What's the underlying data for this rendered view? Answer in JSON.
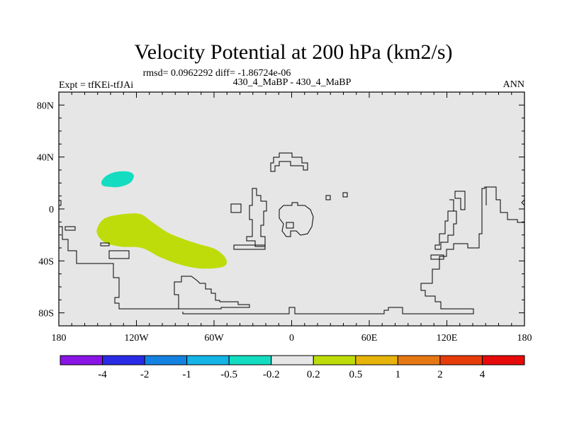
{
  "chart_data": {
    "type": "heatmap",
    "title": "Velocity Potential at 200 hPa (km2/s)",
    "stats_text": "rmsd= 0.0962292 diff= -1.86724e-06",
    "left_label": "Expt = tfKEi-tfJAi",
    "center_label": "430_4_MaBP - 430_4_MaBP",
    "right_label": "ANN",
    "x_range": [
      -180,
      180
    ],
    "y_range": [
      -90,
      90
    ],
    "x_ticks": [
      {
        "value": -180,
        "label": "180"
      },
      {
        "value": -120,
        "label": "120W"
      },
      {
        "value": -60,
        "label": "60W"
      },
      {
        "value": 0,
        "label": "0"
      },
      {
        "value": 60,
        "label": "60E"
      },
      {
        "value": 120,
        "label": "120E"
      },
      {
        "value": 180,
        "label": "180"
      }
    ],
    "y_ticks": [
      {
        "value": 80,
        "label": "80N"
      },
      {
        "value": 40,
        "label": "40N"
      },
      {
        "value": 0,
        "label": "0"
      },
      {
        "value": -40,
        "label": "40S"
      },
      {
        "value": -80,
        "label": "80S"
      }
    ],
    "background_color": "#e6e6e6",
    "colorbar": {
      "colors": [
        "#8a14e6",
        "#2a2ae6",
        "#1482e0",
        "#14b4e6",
        "#14dcc0",
        "#e6e6e6",
        "#bedc0a",
        "#e6b40a",
        "#e67814",
        "#e63c0a",
        "#e60a0a"
      ],
      "labels": [
        "-4",
        "-2",
        "-1",
        "-0.5",
        "-0.2",
        "0.2",
        "0.5",
        "1",
        "2",
        "4"
      ]
    },
    "regions": [
      {
        "level": "-0.5 to -0.2",
        "color": "#14dcc0",
        "outline": [
          [
            -147,
            21
          ],
          [
            -144,
            25
          ],
          [
            -138,
            28
          ],
          [
            -130,
            29
          ],
          [
            -124,
            28
          ],
          [
            -122,
            25
          ],
          [
            -125,
            20
          ],
          [
            -133,
            17
          ],
          [
            -141,
            17
          ],
          [
            -146,
            18
          ]
        ]
      },
      {
        "level": "0.2 to 0.5",
        "color": "#bedc0a",
        "outline": [
          [
            -150,
            -14
          ],
          [
            -144,
            -7
          ],
          [
            -130,
            -4
          ],
          [
            -117,
            -4
          ],
          [
            -108,
            -10
          ],
          [
            -96,
            -18
          ],
          [
            -84,
            -23
          ],
          [
            -72,
            -27
          ],
          [
            -59,
            -31
          ],
          [
            -51,
            -38
          ],
          [
            -52,
            -44
          ],
          [
            -65,
            -46
          ],
          [
            -77,
            -45
          ],
          [
            -89,
            -42
          ],
          [
            -102,
            -37
          ],
          [
            -116,
            -30
          ],
          [
            -132,
            -29
          ],
          [
            -144,
            -26
          ],
          [
            -150,
            -20
          ]
        ]
      }
    ]
  }
}
